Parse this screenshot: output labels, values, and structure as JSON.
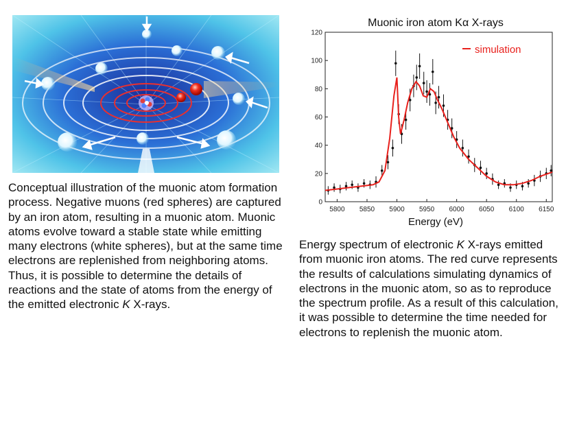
{
  "illustration": {
    "subject": "muonic atom formation"
  },
  "captions": {
    "left": {
      "before_italic": "Conceptual illustration of the muonic atom formation process. Negative muons (red spheres) are captured by an iron atom, resulting in a muonic atom. Muonic atoms evolve toward a stable state while emitting many electrons (white spheres), but at the same time electrons are replenished from neighboring atoms. Thus, it is possible to determine the details of reactions and the state of atoms from the energy of the emitted electronic ",
      "italic": "K",
      "after_italic": " X-rays."
    },
    "right": {
      "before_italic": "Energy spectrum of electronic ",
      "italic": "K",
      "after_italic": " X-rays emitted from muonic iron atoms. The red curve represents the results of calculations simulating dynamics of electrons in the muonic atom, so as to reproduce the spectrum profile. As a result of this calculation, it was possible to determine the time needed for electrons to replenish the muonic atom."
    }
  },
  "chart_data": {
    "type": "scatter",
    "title": "Muonic iron atom Kα X-rays",
    "xlabel": "Energy (eV)",
    "ylabel": "",
    "xlim": [
      5780,
      6160
    ],
    "ylim": [
      0,
      120
    ],
    "x_ticks": [
      5800,
      5850,
      5900,
      5950,
      6000,
      6050,
      6100,
      6150
    ],
    "y_ticks": [
      0,
      20,
      40,
      60,
      80,
      100,
      120
    ],
    "x_tick_labels": [
      "5800",
      "5850",
      "5900",
      "5950",
      "6000",
      "6050",
      "6100",
      "6150"
    ],
    "y_tick_labels": [
      "0",
      "20",
      "40",
      "60",
      "80",
      "100",
      "120"
    ],
    "legend": {
      "entries": [
        "simulation"
      ],
      "position": "top-right"
    },
    "colors": {
      "simulation": "#e8201c",
      "data": "#111111"
    },
    "data": {
      "x": [
        5785,
        5795,
        5805,
        5815,
        5825,
        5835,
        5845,
        5855,
        5865,
        5875,
        5885,
        5893,
        5898,
        5903,
        5908,
        5915,
        5922,
        5928,
        5933,
        5938,
        5945,
        5950,
        5955,
        5960,
        5965,
        5970,
        5978,
        5985,
        5992,
        6000,
        6010,
        6020,
        6030,
        6040,
        6050,
        6060,
        6070,
        6080,
        6090,
        6100,
        6110,
        6120,
        6130,
        6140,
        6150,
        6158
      ],
      "y": [
        8,
        10,
        9,
        11,
        12,
        10,
        13,
        12,
        14,
        22,
        28,
        38,
        98,
        62,
        48,
        58,
        72,
        82,
        88,
        96,
        84,
        78,
        76,
        92,
        70,
        74,
        68,
        58,
        52,
        44,
        38,
        32,
        26,
        24,
        20,
        16,
        12,
        13,
        10,
        12,
        11,
        13,
        15,
        18,
        20,
        22
      ],
      "err": [
        3,
        3,
        3,
        3,
        3,
        3,
        3,
        3,
        4,
        4,
        5,
        6,
        9,
        7,
        7,
        7,
        8,
        8,
        9,
        9,
        8,
        8,
        8,
        9,
        8,
        8,
        8,
        7,
        7,
        6,
        6,
        5,
        5,
        5,
        4,
        4,
        3,
        3,
        3,
        3,
        3,
        3,
        4,
        4,
        4,
        4
      ]
    },
    "series": [
      {
        "name": "simulation",
        "x": [
          5780,
          5800,
          5820,
          5840,
          5860,
          5870,
          5880,
          5888,
          5895,
          5900,
          5903,
          5906,
          5912,
          5918,
          5925,
          5932,
          5938,
          5944,
          5950,
          5956,
          5962,
          5968,
          5975,
          5985,
          5995,
          6005,
          6020,
          6035,
          6050,
          6065,
          6080,
          6095,
          6110,
          6125,
          6140,
          6160
        ],
        "y": [
          8,
          9,
          10,
          11,
          12,
          14,
          22,
          45,
          75,
          88,
          60,
          48,
          58,
          70,
          80,
          85,
          82,
          75,
          74,
          80,
          78,
          72,
          66,
          56,
          46,
          38,
          30,
          24,
          18,
          14,
          12,
          12,
          13,
          15,
          18,
          21
        ]
      }
    ]
  }
}
